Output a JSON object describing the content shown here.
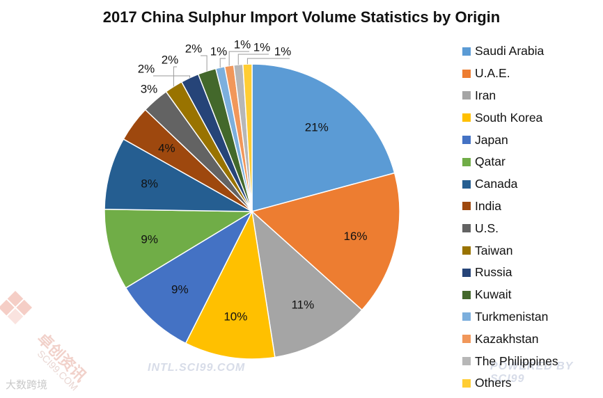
{
  "chart_data": {
    "type": "pie",
    "title": "2017 China Sulphur Import Volume Statistics by Origin",
    "categories": [
      "Saudi Arabia",
      "U.A.E.",
      "Iran",
      "South Korea",
      "Japan",
      "Qatar",
      "Canada",
      "India",
      "U.S.",
      "Taiwan",
      "Russia",
      "Kuwait",
      "Turkmenistan",
      "Kazakhstan",
      "The Philippines",
      "Others"
    ],
    "values": [
      21,
      16,
      11,
      10,
      9,
      9,
      8,
      4,
      3,
      2,
      2,
      2,
      1,
      1,
      1,
      1
    ],
    "labels": [
      "21%",
      "16%",
      "11%",
      "10%",
      "9%",
      "9%",
      "8%",
      "4%",
      "3%",
      "2%",
      "2%",
      "2%",
      "1%",
      "1%",
      "1%",
      "1%"
    ],
    "colors": [
      "#5B9BD5",
      "#ED7D31",
      "#A5A5A5",
      "#FFC000",
      "#4472C4",
      "#70AD47",
      "#255E91",
      "#9E480E",
      "#636363",
      "#997300",
      "#264478",
      "#43682B",
      "#7CAFDD",
      "#F1975A",
      "#B7B7B7",
      "#FFCD33"
    ],
    "legend_position": "right"
  },
  "watermarks": {
    "site": "INTL.SCI99.COM",
    "powered": "POWERED BY SCI99",
    "brand_cn": "卓创资讯",
    "brand_en": "SCI99.COM",
    "bottom": "大数跨境"
  }
}
